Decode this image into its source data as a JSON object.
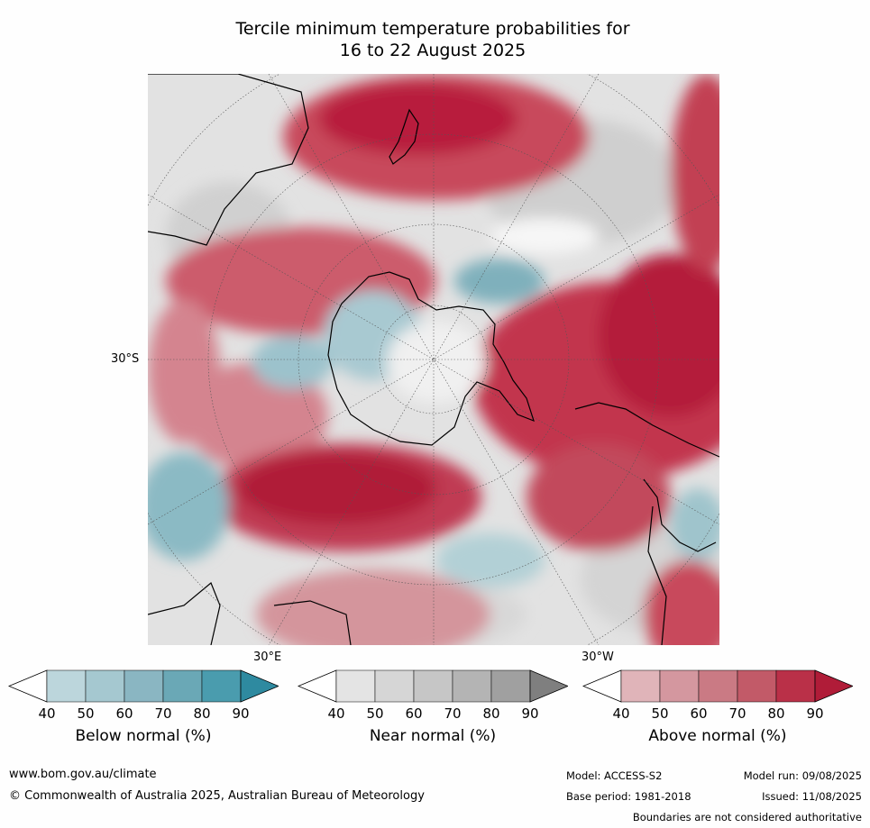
{
  "title": {
    "line1": "Tercile minimum temperature probabilities for",
    "line2": "16 to 22 August 2025"
  },
  "map_labels": {
    "lat_label": "30°S",
    "lon_east": "30°E",
    "lon_west": "30°W"
  },
  "colorbars": [
    {
      "label": "Below normal (%)",
      "ticks": [
        "40",
        "50",
        "60",
        "70",
        "80",
        "90"
      ],
      "colors": [
        "#ffffff",
        "#bcd6dc",
        "#a5c8d0",
        "#8ab6c2",
        "#6aa8b6",
        "#4a9cae",
        "#2e8aa0"
      ]
    },
    {
      "label": "Near normal (%)",
      "ticks": [
        "40",
        "50",
        "60",
        "70",
        "80",
        "90"
      ],
      "colors": [
        "#ffffff",
        "#e4e4e4",
        "#d6d6d6",
        "#c6c6c6",
        "#b4b4b4",
        "#a0a0a0",
        "#7f7f7f"
      ]
    },
    {
      "label": "Above normal (%)",
      "ticks": [
        "40",
        "50",
        "60",
        "70",
        "80",
        "90"
      ],
      "colors": [
        "#ffffff",
        "#e0b4b9",
        "#d4979f",
        "#ca7a84",
        "#c25a68",
        "#ba3048",
        "#b01c38"
      ]
    }
  ],
  "footer": {
    "website": "www.bom.gov.au/climate",
    "copyright": "© Commonwealth of Australia 2025, Australian Bureau of Meteorology",
    "model": "Model: ACCESS-S2",
    "base_period": "Base period: 1981-2018",
    "model_run": "Model run: 09/08/2025",
    "issued": "Issued: 11/08/2025",
    "disclaimer": "Boundaries are not considered authoritative"
  }
}
